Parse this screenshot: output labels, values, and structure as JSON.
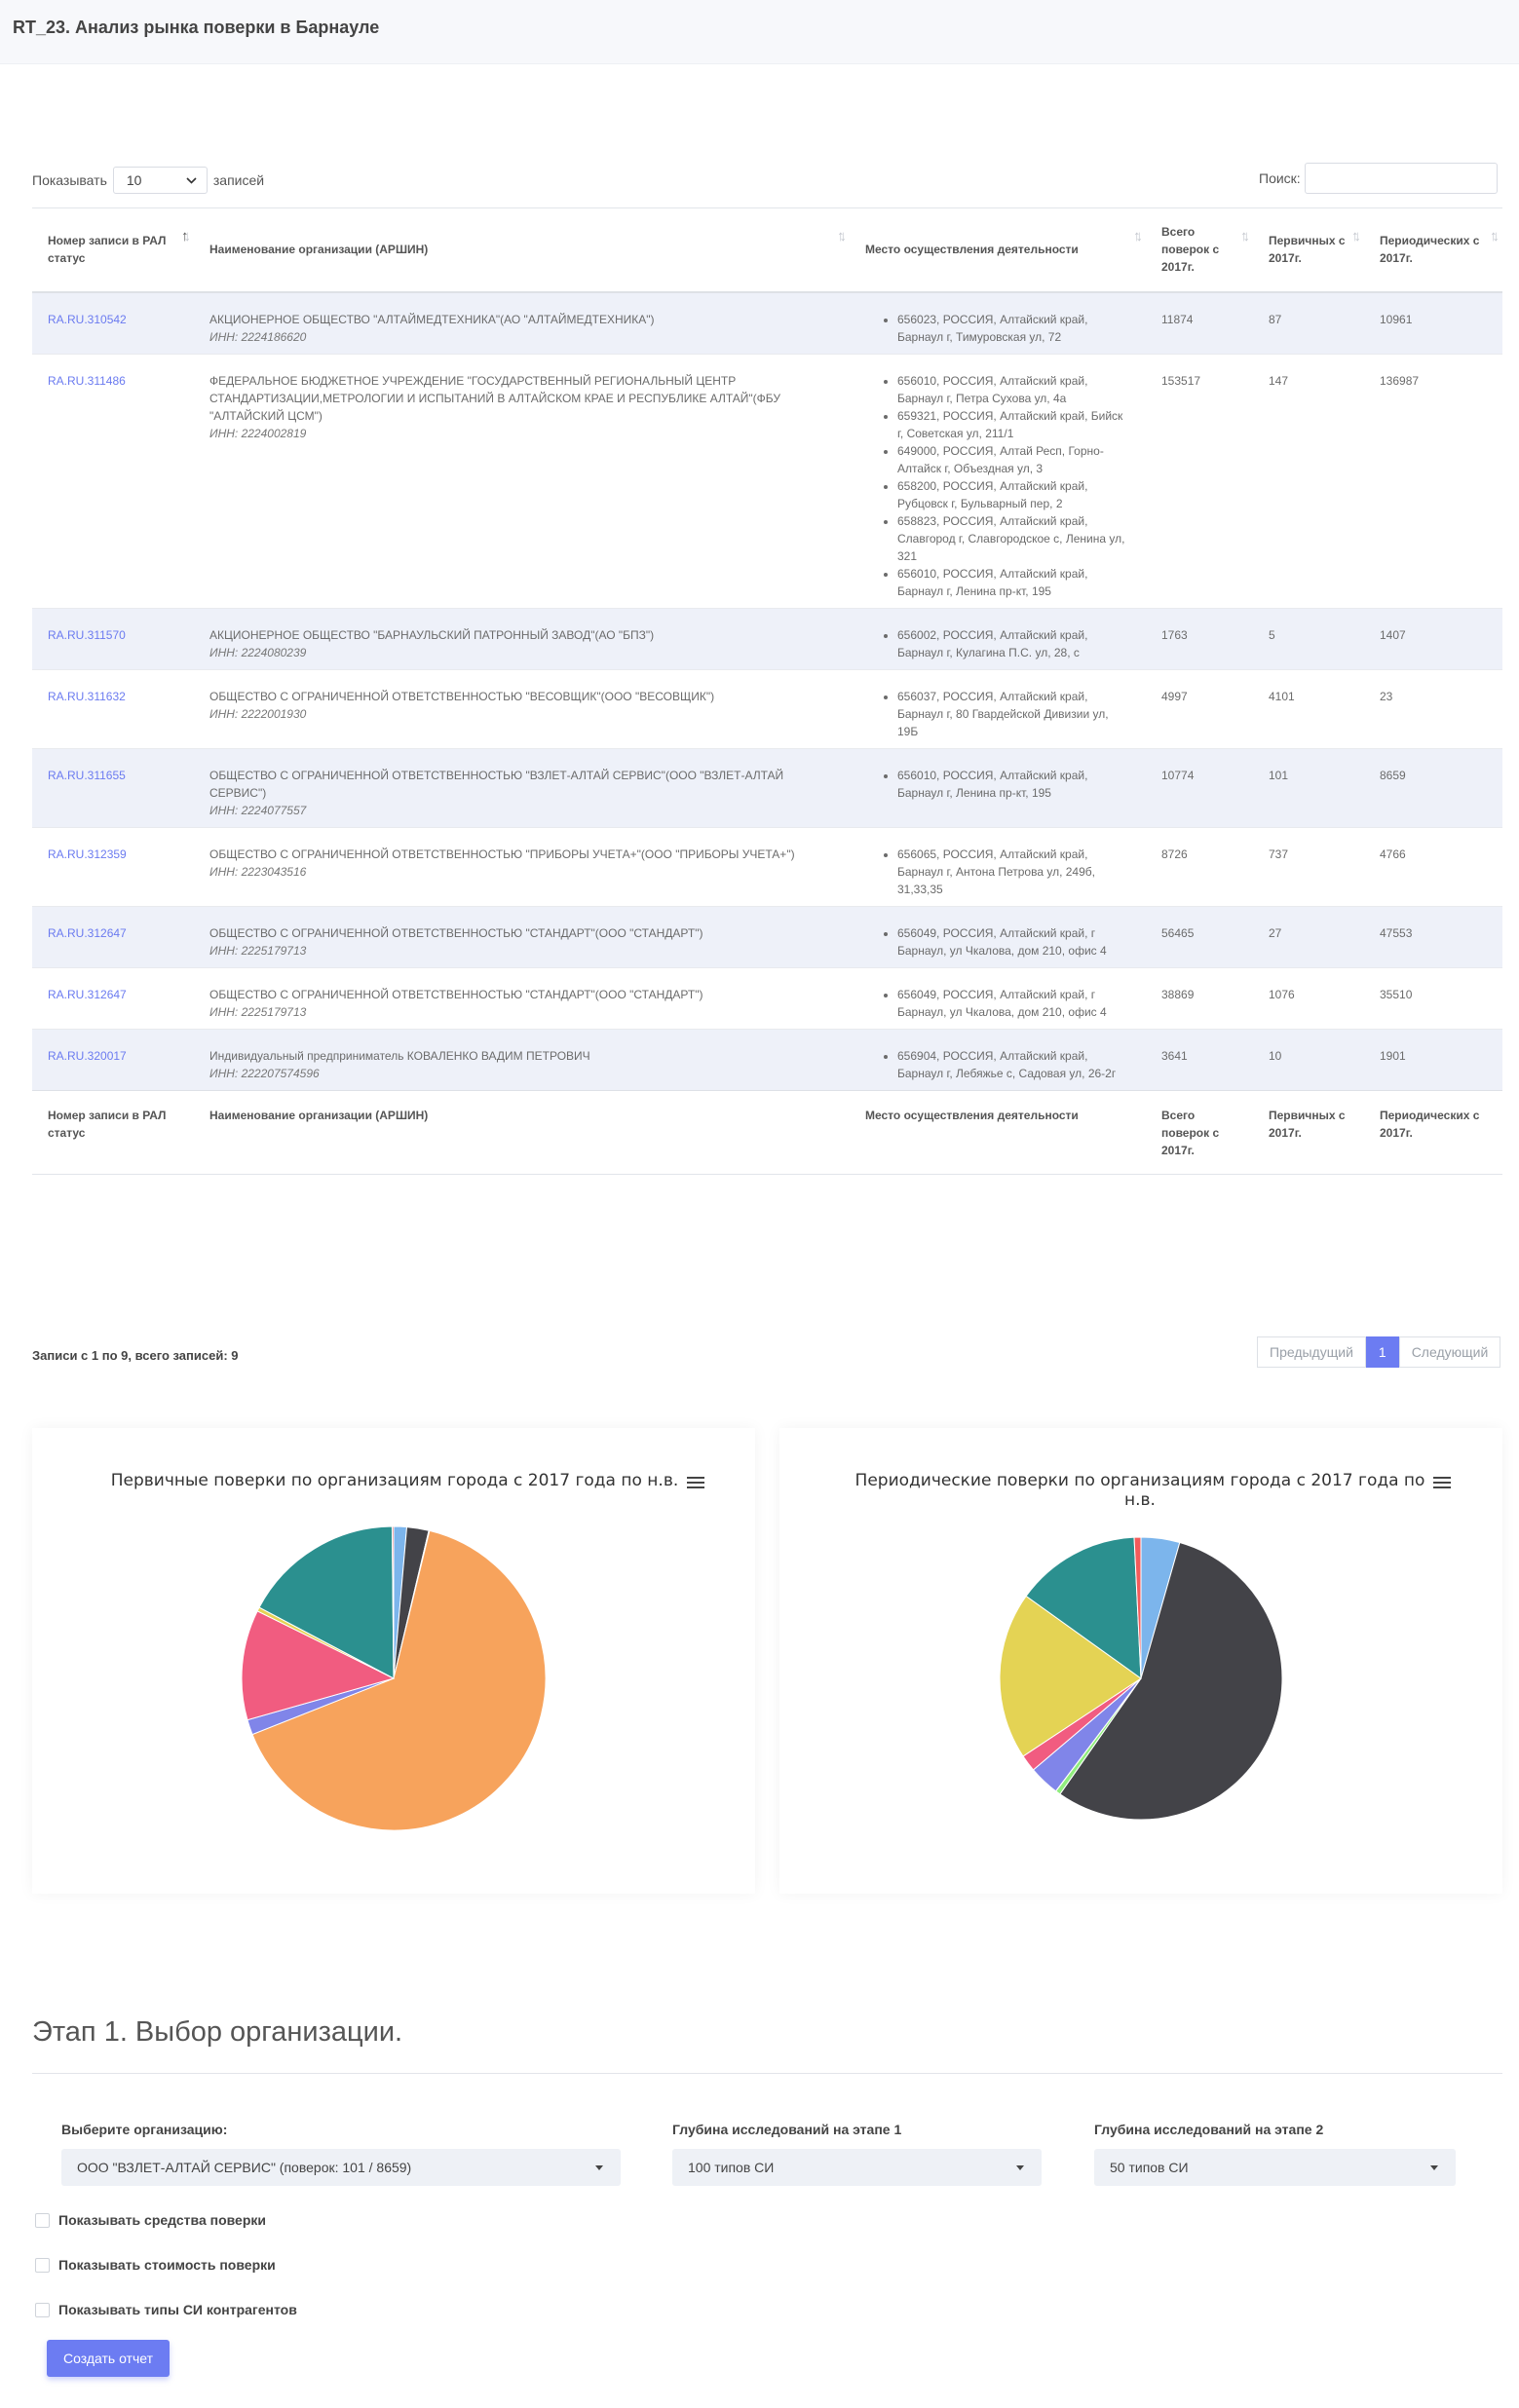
{
  "page": {
    "title": "RT_23. Анализ рынка поверки в Барнауле"
  },
  "table_controls": {
    "length_label_before": "Показывать",
    "length_value": "10",
    "length_label_after": "записей",
    "search_label": "Поиск:"
  },
  "table": {
    "columns": [
      "Номер записи в РАЛ статус",
      "Наименование организации (АРШИН)",
      "Место осуществления деятельности",
      "Всего поверок с 2017г.",
      "Первичных с 2017г.",
      "Периодических с 2017г."
    ],
    "rows": [
      {
        "reg": "RA.RU.310542",
        "name": "АКЦИОНЕРНОЕ ОБЩЕСТВО \"АЛТАЙМЕДТЕХНИКА\"(АО \"АЛТАЙМЕДТЕХНИКА\")",
        "inn": "ИНН: 2224186620",
        "addresses": [
          "656023, РОССИЯ, Алтайский край, Барнаул г, Тимуровская ул, 72"
        ],
        "total": "11874",
        "primary": "87",
        "periodic": "10961"
      },
      {
        "reg": "RA.RU.311486",
        "name": "ФЕДЕРАЛЬНОЕ БЮДЖЕТНОЕ УЧРЕЖДЕНИЕ \"ГОСУДАРСТВЕННЫЙ РЕГИОНАЛЬНЫЙ ЦЕНТР СТАНДАРТИЗАЦИИ,МЕТРОЛОГИИ И ИСПЫТАНИЙ В АЛТАЙСКОМ КРАЕ И РЕСПУБЛИКЕ АЛТАЙ\"(ФБУ \"АЛТАЙСКИЙ ЦСМ\")",
        "inn": "ИНН: 2224002819",
        "addresses": [
          "656010, РОССИЯ, Алтайский край, Барнаул г, Петра Сухова ул, 4а",
          "659321, РОССИЯ, Алтайский край, Бийск г, Советская ул, 211/1",
          "649000, РОССИЯ, Алтай Респ, Горно-Алтайск г, Объездная ул, 3",
          "658200, РОССИЯ, Алтайский край, Рубцовск г, Бульварный пер, 2",
          "658823, РОССИЯ, Алтайский край, Славгород г, Славгородское с, Ленина ул, 321",
          "656010, РОССИЯ, Алтайский край, Барнаул г, Ленина пр-кт, 195"
        ],
        "total": "153517",
        "primary": "147",
        "periodic": "136987"
      },
      {
        "reg": "RA.RU.311570",
        "name": "АКЦИОНЕРНОЕ ОБЩЕСТВО \"БАРНАУЛЬСКИЙ ПАТРОННЫЙ ЗАВОД\"(АО \"БПЗ\")",
        "inn": "ИНН: 2224080239",
        "addresses": [
          "656002, РОССИЯ, Алтайский край, Барнаул г, Кулагина П.С. ул, 28, с"
        ],
        "total": "1763",
        "primary": "5",
        "periodic": "1407"
      },
      {
        "reg": "RA.RU.311632",
        "name": "ОБЩЕСТВО С ОГРАНИЧЕННОЙ ОТВЕТСТВЕННОСТЬЮ \"ВЕСОВЩИК\"(ООО \"ВЕСОВЩИК\")",
        "inn": "ИНН: 2222001930",
        "addresses": [
          "656037, РОССИЯ, Алтайский край, Барнаул г, 80 Гвардейской Дивизии ул, 19Б"
        ],
        "total": "4997",
        "primary": "4101",
        "periodic": "23"
      },
      {
        "reg": "RA.RU.311655",
        "name": "ОБЩЕСТВО С ОГРАНИЧЕННОЙ ОТВЕТСТВЕННОСТЬЮ \"ВЗЛЕТ-АЛТАЙ СЕРВИС\"(ООО \"ВЗЛЕТ-АЛТАЙ СЕРВИС\")",
        "inn": "ИНН: 2224077557",
        "addresses": [
          "656010, РОССИЯ, Алтайский край, Барнаул г, Ленина пр-кт, 195"
        ],
        "total": "10774",
        "primary": "101",
        "periodic": "8659"
      },
      {
        "reg": "RA.RU.312359",
        "name": "ОБЩЕСТВО С ОГРАНИЧЕННОЙ ОТВЕТСТВЕННОСТЬЮ \"ПРИБОРЫ УЧЕТА+\"(ООО \"ПРИБОРЫ УЧЕТА+\")",
        "inn": "ИНН: 2223043516",
        "addresses": [
          "656065, РОССИЯ, Алтайский край, Барнаул г, Антона Петрова ул, 249б, 31,33,35"
        ],
        "total": "8726",
        "primary": "737",
        "periodic": "4766"
      },
      {
        "reg": "RA.RU.312647",
        "name": "ОБЩЕСТВО С ОГРАНИЧЕННОЙ ОТВЕТСТВЕННОСТЬЮ \"СТАНДАРТ\"(ООО \"СТАНДАРТ\")",
        "inn": "ИНН: 2225179713",
        "addresses": [
          "656049, РОССИЯ, Алтайский край, г Барнаул, ул Чкалова, дом 210, офис 4"
        ],
        "total": "56465",
        "primary": "27",
        "periodic": "47553"
      },
      {
        "reg": "RA.RU.312647",
        "name": "ОБЩЕСТВО С ОГРАНИЧЕННОЙ ОТВЕТСТВЕННОСТЬЮ \"СТАНДАРТ\"(ООО \"СТАНДАРТ\")",
        "inn": "ИНН: 2225179713",
        "addresses": [
          "656049, РОССИЯ, Алтайский край, г Барнаул, ул Чкалова, дом 210, офис 4"
        ],
        "total": "38869",
        "primary": "1076",
        "periodic": "35510"
      },
      {
        "reg": "RA.RU.320017",
        "name": "Индивидуальный предприниматель КОВАЛЕНКО ВАДИМ ПЕТРОВИЧ",
        "inn": "ИНН: 222207574596",
        "addresses": [
          "656904, РОССИЯ, Алтайский край, Барнаул г, Лебяжье с, Садовая ул, 26-2г"
        ],
        "total": "3641",
        "primary": "10",
        "periodic": "1901"
      }
    ],
    "info": "Записи с 1 по 9, всего записей: 9",
    "pager": {
      "prev": "Предыдущий",
      "page": "1",
      "next": "Следующий"
    }
  },
  "chart_data": [
    {
      "type": "pie",
      "title": "Первичные поверки по организациям города с 2017 года по н.в.",
      "values": [
        87,
        147,
        5,
        4101,
        101,
        737,
        27,
        1076,
        10
      ],
      "colors": [
        "#7cb5ec",
        "#434348",
        "#90ed7d",
        "#f7a35c",
        "#8085e9",
        "#f15c80",
        "#e4d354",
        "#2b908f",
        "#f45b5b"
      ],
      "start_angle": 0
    },
    {
      "type": "pie",
      "title": "Периодические поверки по организациям города с 2017 года по н.в.",
      "values": [
        10961,
        136987,
        1407,
        23,
        8659,
        4766,
        47553,
        35510,
        1901
      ],
      "colors": [
        "#7cb5ec",
        "#434348",
        "#90ed7d",
        "#f7a35c",
        "#8085e9",
        "#f15c80",
        "#e4d354",
        "#2b908f",
        "#f45b5b"
      ],
      "start_angle": 0
    }
  ],
  "stage": {
    "title": "Этап 1. Выбор организации.",
    "org_label": "Выберите организацию:",
    "org_value": "ООО \"ВЗЛЕТ-АЛТАЙ СЕРВИС\" (поверок: 101 / 8659)",
    "depth1_label": "Глубина исследований на этапе 1",
    "depth1_value": "100 типов СИ",
    "depth2_label": "Глубина исследований на этапе 2",
    "depth2_value": "50 типов СИ",
    "checkboxes": [
      "Показывать средства поверки",
      "Показывать стоимость поверки",
      "Показывать типы СИ контрагентов"
    ],
    "button": "Создать отчет"
  }
}
